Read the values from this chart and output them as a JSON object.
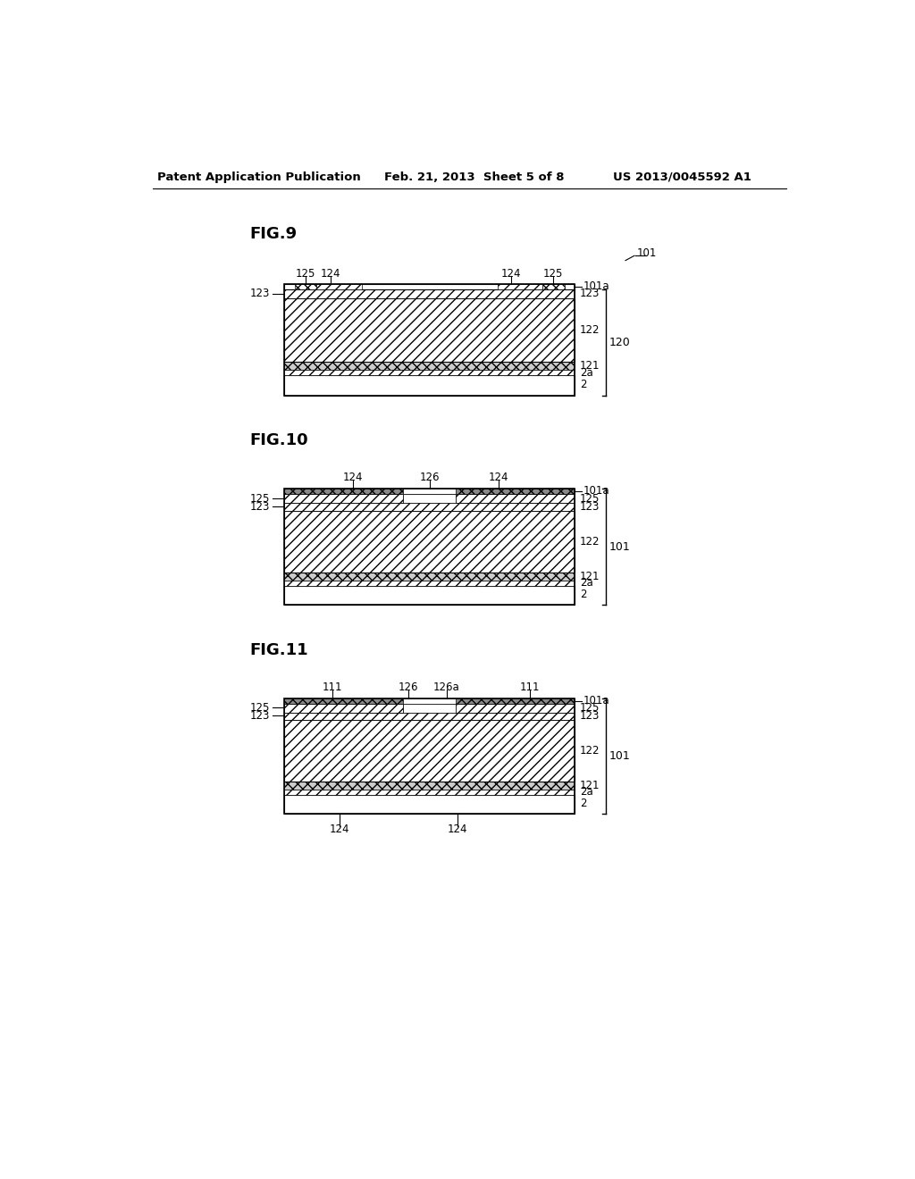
{
  "header_left": "Patent Application Publication",
  "header_mid": "Feb. 21, 2013  Sheet 5 of 8",
  "header_right": "US 2013/0045592 A1",
  "bg_color": "#ffffff",
  "fig9_title": "FIG.9",
  "fig10_title": "FIG.10",
  "fig11_title": "FIG.11"
}
